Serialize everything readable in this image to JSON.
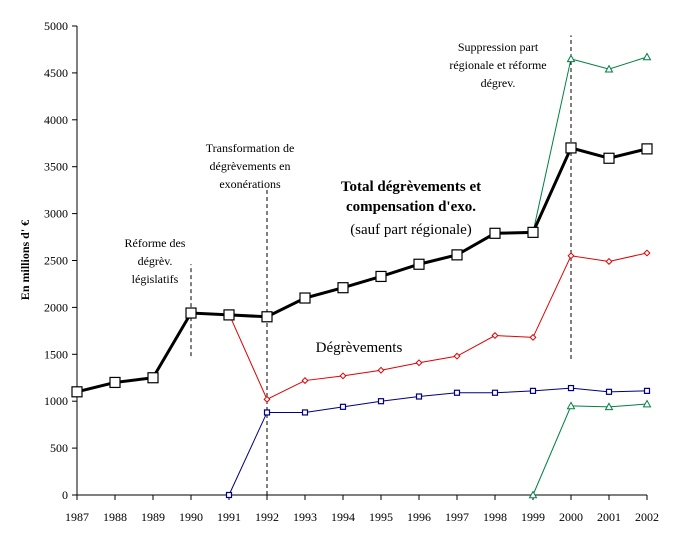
{
  "chart_data": {
    "type": "line",
    "ylabel": "En millions d' €",
    "x": [
      1987,
      1988,
      1989,
      1990,
      1991,
      1992,
      1993,
      1994,
      1995,
      1996,
      1997,
      1998,
      1999,
      2000,
      2001,
      2002
    ],
    "ylim": [
      0,
      5000
    ],
    "yticks": [
      0,
      500,
      1000,
      1500,
      2000,
      2500,
      3000,
      3500,
      4000,
      4500,
      5000
    ],
    "grid": false,
    "series": [
      {
        "key": "total",
        "color": "#000000",
        "marker": "square",
        "values": [
          1100,
          1200,
          1250,
          1940,
          1920,
          1900,
          2100,
          2210,
          2330,
          2460,
          2560,
          2790,
          2800,
          3700,
          3590,
          3690
        ]
      },
      {
        "key": "degrevements",
        "color": "#e00000",
        "marker": "diamond",
        "values": [
          null,
          null,
          null,
          null,
          1930,
          1020,
          1220,
          1270,
          1330,
          1410,
          1480,
          1700,
          1680,
          2550,
          2490,
          2580
        ]
      },
      {
        "key": "total_incl_regional",
        "color": "#008040",
        "marker": "triangle",
        "values": [
          null,
          null,
          null,
          null,
          null,
          null,
          null,
          null,
          null,
          null,
          null,
          null,
          2800,
          4650,
          4540,
          4670
        ]
      },
      {
        "key": "exonerations",
        "color": "#000080",
        "marker": "square",
        "values": [
          null,
          null,
          null,
          null,
          0,
          880,
          880,
          940,
          1000,
          1050,
          1090,
          1090,
          1110,
          1140,
          1100,
          1110
        ]
      },
      {
        "key": "part_regionale",
        "color": "#008040",
        "marker": "triangle",
        "values": [
          null,
          null,
          null,
          null,
          null,
          null,
          null,
          null,
          null,
          null,
          null,
          null,
          0,
          950,
          940,
          970
        ]
      }
    ],
    "labels": {
      "total_title_1": "Total dégrèvements et",
      "total_title_2": "compensation d'exo.",
      "total_title_3": "(sauf part régionale)",
      "degrevements": "Dégrèvements"
    },
    "annotations": [
      {
        "x": 1990,
        "y_from": 1480,
        "y_to": 2460,
        "lines": [
          "Réforme des",
          "dégrèv.",
          "législatifs"
        ]
      },
      {
        "x": 1992,
        "y_from": 0,
        "y_to": 3270,
        "lines": [
          "Transformation de",
          "dégrèvements en",
          "exonérations"
        ]
      },
      {
        "x": 2000,
        "y_from": 1450,
        "y_to": 4900,
        "lines": [
          "Suppression part",
          "régionale et réforme",
          "dégrev."
        ]
      }
    ]
  }
}
